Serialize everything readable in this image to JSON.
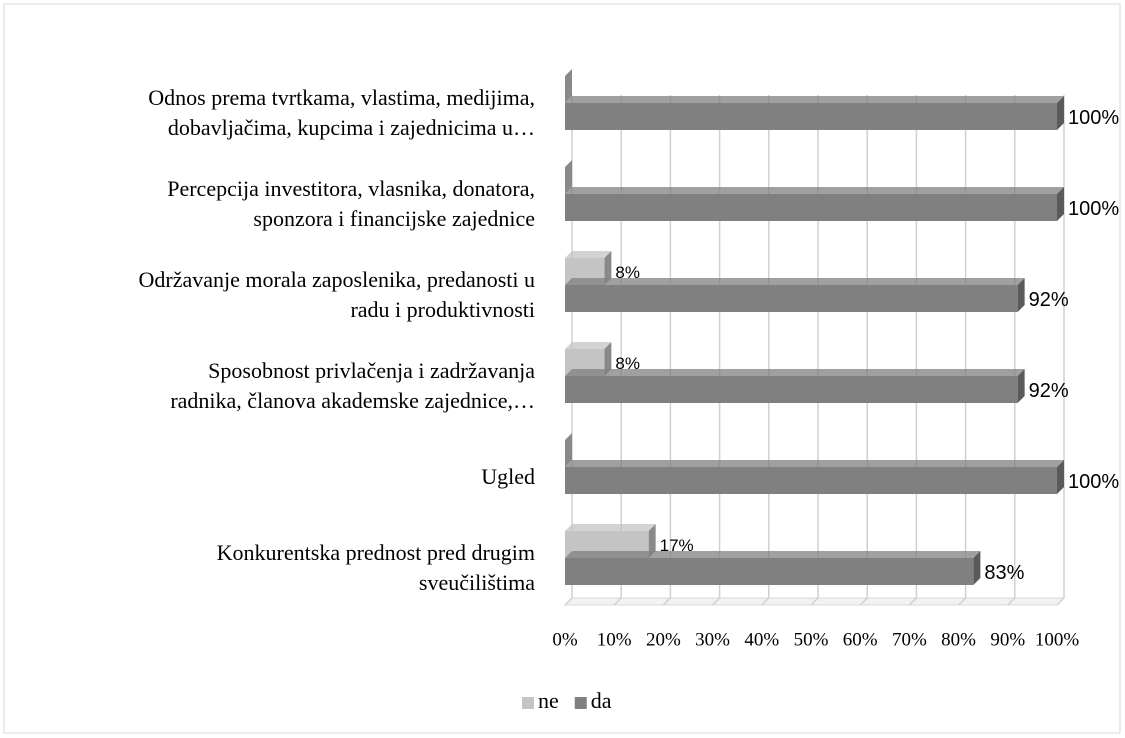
{
  "chart_data": {
    "type": "bar",
    "orientation": "horizontal",
    "categories": [
      "Odnos prema tvrtkama, vlastima, medijima,\ndobavljačima, kupcima i zajednicima u…",
      "Percepcija investitora, vlasnika, donatora,\nsponzora i financijske zajednice",
      "Održavanje morala zaposlenika, predanosti u\nradu i produktivnosti",
      "Sposobnost privlačenja i zadržavanja\nradnika, članova akademske zajednice,…",
      "Ugled",
      "Konkurentska prednost pred drugim\nsveučilištima"
    ],
    "series": [
      {
        "name": "ne",
        "color": "#c4c4c4",
        "values": [
          0,
          0,
          8,
          8,
          0,
          17
        ],
        "value_labels": [
          null,
          null,
          "8%",
          "8%",
          null,
          "17%"
        ]
      },
      {
        "name": "da",
        "color": "#808080",
        "values": [
          100,
          100,
          92,
          92,
          100,
          83
        ],
        "value_labels": [
          "100%",
          "100%",
          "92%",
          "92%",
          "100%",
          "83%"
        ]
      }
    ],
    "xlim": [
      0,
      100
    ],
    "xticks": [
      {
        "value": 0,
        "label": "0%"
      },
      {
        "value": 10,
        "label": "10%"
      },
      {
        "value": 20,
        "label": "20%"
      },
      {
        "value": 30,
        "label": "30%"
      },
      {
        "value": 40,
        "label": "40%"
      },
      {
        "value": 50,
        "label": "50%"
      },
      {
        "value": 60,
        "label": "60%"
      },
      {
        "value": 70,
        "label": "70%"
      },
      {
        "value": 80,
        "label": "80%"
      },
      {
        "value": 90,
        "label": "90%"
      },
      {
        "value": 100,
        "label": "100%"
      }
    ],
    "grid": true,
    "legend": "bottom"
  }
}
